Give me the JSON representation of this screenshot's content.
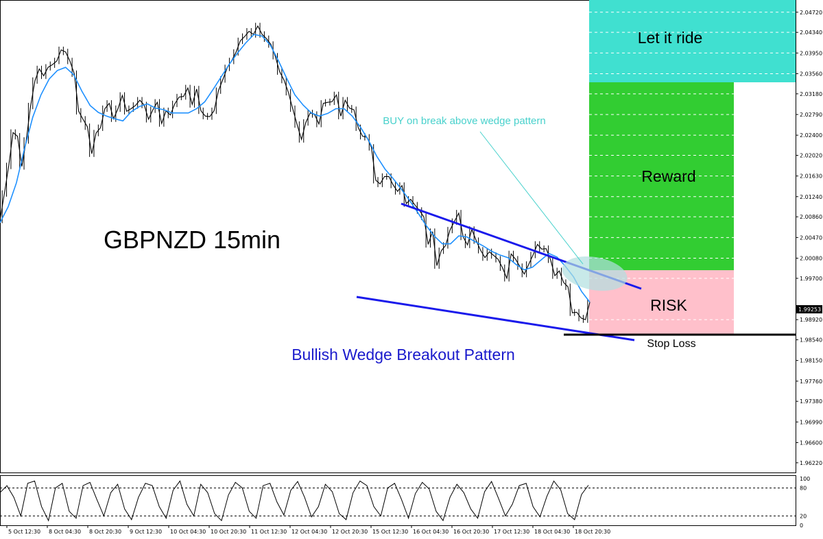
{
  "chart_data": {
    "type": "line",
    "title": "GBPNZD 15min",
    "annotations": {
      "pattern": "Bullish Wedge Breakout Pattern",
      "buy_note": "BUY on break above wedge pattern",
      "stop_loss": "Stop Loss",
      "zones": {
        "let_it_ride": "Let it ride",
        "reward": "Reward",
        "risk": "RISK"
      }
    },
    "price_axis": {
      "ticks": [
        "2.04720",
        "2.04340",
        "2.03950",
        "2.03560",
        "2.03180",
        "2.02790",
        "2.02400",
        "2.02020",
        "2.01630",
        "2.01240",
        "2.00860",
        "2.00470",
        "2.00080",
        "1.99700",
        "1.98920",
        "1.98540",
        "1.98150",
        "1.97760",
        "1.97380",
        "1.96990",
        "1.96600",
        "1.96220"
      ],
      "current_price": "1.99253",
      "range": [
        1.9605,
        2.0495
      ]
    },
    "time_axis": {
      "labels": [
        "5 Oct 12:30",
        "8 Oct 04:30",
        "8 Oct 20:30",
        "9 Oct 12:30",
        "10 Oct 04:30",
        "10 Oct 20:30",
        "11 Oct 12:30",
        "12 Oct 04:30",
        "12 Oct 20:30",
        "15 Oct 12:30",
        "16 Oct 04:30",
        "16 Oct 20:30",
        "17 Oct 12:30",
        "18 Oct 04:30",
        "18 Oct 20:30"
      ]
    },
    "zone_levels": {
      "let_it_ride_bottom": 2.035,
      "reward_bottom": 1.9998,
      "risk_bottom": 1.9879,
      "stop_loss": 1.9874
    },
    "price_series": {
      "name": "",
      "values": [
        2.008,
        2.013,
        2.0182,
        2.0245,
        2.0238,
        2.0181,
        2.023,
        2.0295,
        2.0343,
        2.0365,
        2.0352,
        2.0368,
        2.0373,
        2.038,
        2.0401,
        2.0397,
        2.038,
        2.0356,
        2.0285,
        2.027,
        2.0256,
        2.0205,
        2.0244,
        2.0254,
        2.029,
        2.03,
        2.0271,
        2.029,
        2.0315,
        2.0285,
        2.029,
        2.0296,
        2.0306,
        2.0297,
        2.027,
        2.0288,
        2.0302,
        2.0262,
        2.0286,
        2.0278,
        2.0299,
        2.0312,
        2.0313,
        2.0329,
        2.0298,
        2.0327,
        2.0286,
        2.0276,
        2.0275,
        2.0286,
        2.0324,
        2.0345,
        2.0367,
        2.038,
        2.0396,
        2.0418,
        2.0426,
        2.0436,
        2.043,
        2.0446,
        2.043,
        2.0422,
        2.0411,
        2.0389,
        2.036,
        2.0344,
        2.0321,
        2.029,
        2.026,
        2.0232,
        2.0264,
        2.0282,
        2.0279,
        2.0261,
        2.03,
        2.0302,
        2.0303,
        2.0316,
        2.0276,
        2.0306,
        2.0291,
        2.0288,
        2.0254,
        2.0238,
        2.0236,
        2.0217,
        2.0155,
        2.0148,
        2.0162,
        2.0162,
        2.0146,
        2.0134,
        2.0145,
        2.0111,
        2.0119,
        2.0108,
        2.0098,
        2.0086,
        2.0034,
        2.0058,
        1.9994,
        2.0022,
        2.0032,
        2.0061,
        2.0077,
        2.0093,
        2.0048,
        2.0033,
        2.0062,
        2.0041,
        2.0023,
        2.0009,
        2.002,
        2.0013,
        2.0006,
        1.999,
        1.997,
        2.0016,
        2.0006,
        1.9992,
        1.9978,
        1.9996,
        2.0014,
        2.0034,
        2.0025,
        2.0026,
        2.0005,
        1.9975,
        1.9984,
        1.9962,
        1.9954,
        1.9905,
        1.9906,
        1.9895,
        1.9892,
        1.9925
      ]
    },
    "moving_average": {
      "name": "",
      "color": "#1e90ff",
      "values": [
        2.0075,
        2.0105,
        2.015,
        2.0215,
        2.0274,
        2.0316,
        2.0346,
        2.0362,
        2.0368,
        2.0354,
        2.0323,
        2.0296,
        2.0283,
        2.0276,
        2.0271,
        2.0267,
        2.0284,
        2.0294,
        2.0299,
        2.0291,
        2.0288,
        2.0282,
        2.0282,
        2.0282,
        2.029,
        2.0303,
        2.0326,
        2.035,
        2.0374,
        2.0395,
        2.0414,
        2.043,
        2.0427,
        2.041,
        2.038,
        2.0347,
        2.0316,
        2.0297,
        2.0282,
        2.0276,
        2.0281,
        2.029,
        2.029,
        2.0276,
        2.0255,
        2.023,
        2.02,
        2.0176,
        2.0158,
        2.0138,
        2.0117,
        2.0094,
        2.007,
        2.005,
        2.0035,
        2.0035,
        2.005,
        2.0048,
        2.0039,
        2.0031,
        2.0021,
        2.0014,
        2.0009,
        1.9996,
        1.9986,
        1.9991,
        2.0004,
        2.0017,
        2.001,
        1.9993,
        1.9973,
        1.9945,
        1.9925
      ]
    },
    "oscillator": {
      "name": "",
      "levels": [
        "100",
        "80",
        "20",
        "0"
      ],
      "values": [
        70,
        85,
        60,
        20,
        90,
        95,
        40,
        10,
        80,
        90,
        30,
        15,
        85,
        92,
        55,
        20,
        70,
        88,
        35,
        12,
        60,
        90,
        85,
        40,
        15,
        75,
        95,
        45,
        20,
        88,
        70,
        25,
        10,
        65,
        92,
        80,
        30,
        15,
        85,
        90,
        50,
        22,
        75,
        94,
        60,
        18,
        40,
        88,
        72,
        25,
        12,
        70,
        95,
        85,
        40,
        20,
        80,
        90,
        55,
        15,
        68,
        92,
        78,
        30,
        10,
        60,
        88,
        70,
        35,
        15,
        72,
        94,
        58,
        20,
        45,
        85,
        90,
        40,
        18,
        62,
        95,
        76,
        25,
        12,
        66,
        86
      ]
    }
  },
  "colors": {
    "let_it_ride": "#40e0d0",
    "reward": "#32cd32",
    "risk": "#ffc0cb",
    "wedge_line": "#1a1aeb",
    "buy_note": "#48d1cc",
    "pattern_label": "#1a1acc",
    "price": "#000000"
  }
}
